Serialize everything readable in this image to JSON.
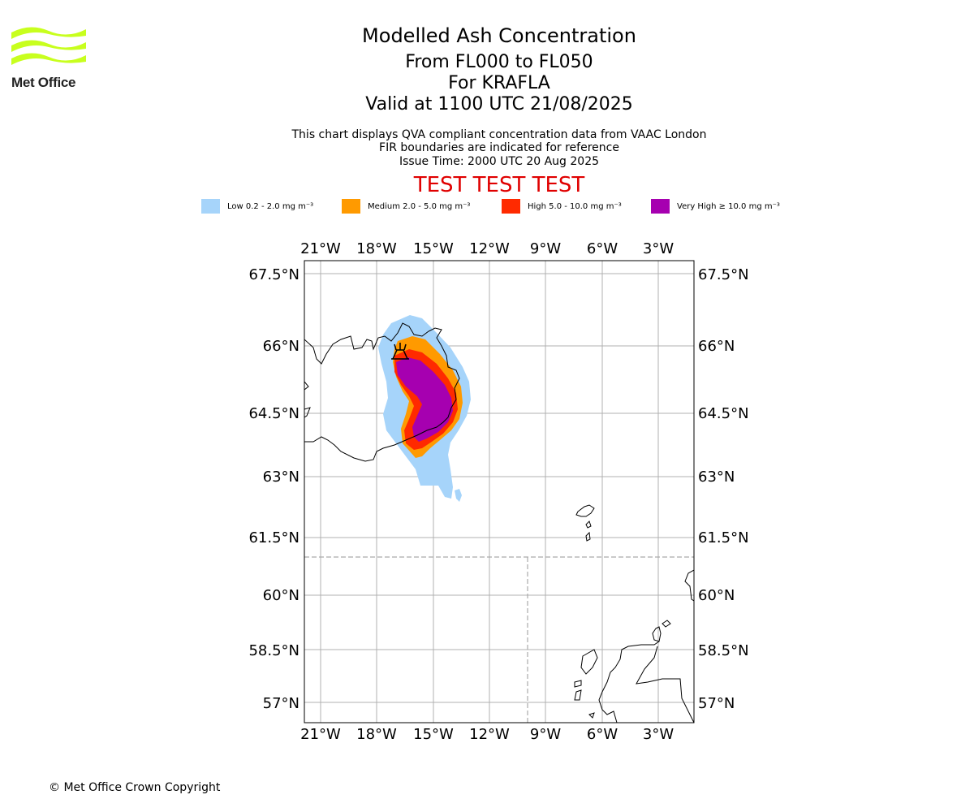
{
  "header": {
    "logo_text": "Met Office",
    "title": "Modelled Ash Concentration",
    "subtitle_levels": "From FL000 to FL050",
    "subtitle_volcano": "For KRAFLA",
    "subtitle_valid": "Valid at 1100 UTC 21/08/2025",
    "note_line1": "This chart displays QVA compliant concentration data from VAAC London",
    "note_line2": "FIR boundaries are indicated for reference",
    "note_line3": "Issue Time: 2000 UTC 20 Aug 2025",
    "test_banner": "TEST TEST TEST"
  },
  "legend": [
    {
      "label": "Low 0.2 - 2.0 mg m⁻³",
      "color": "#a6d4fa"
    },
    {
      "label": "Medium 2.0 - 5.0 mg m⁻³",
      "color": "#ff9a00"
    },
    {
      "label": "High 5.0 - 10.0 mg m⁻³",
      "color": "#ff2a00"
    },
    {
      "label": "Very High ≥ 10.0 mg m⁻³",
      "color": "#a600b0"
    }
  ],
  "map": {
    "lon_ticks": [
      "21°W",
      "18°W",
      "15°W",
      "12°W",
      "9°W",
      "6°W",
      "3°W"
    ],
    "lat_ticks": [
      "67.5°N",
      "66°N",
      "64.5°N",
      "63°N",
      "61.5°N",
      "60°N",
      "58.5°N",
      "57°N"
    ],
    "volcano_marker": "volcano-icon",
    "fir_boundary_color": "#aaaaaa",
    "grid_color": "#b0b0b0"
  },
  "footer": {
    "copyright": "© Met Office Crown Copyright"
  },
  "colors": {
    "test_banner": "#e00000",
    "logo_green": "#c8ff1e"
  }
}
